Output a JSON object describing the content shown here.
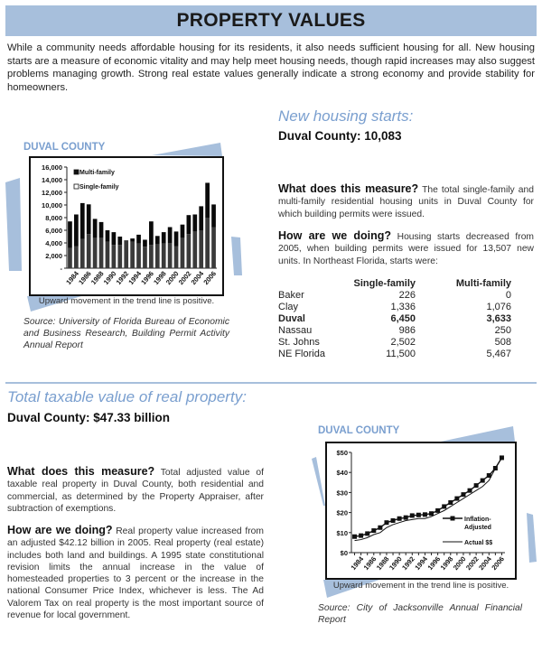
{
  "header": {
    "title": "PROPERTY VALUES"
  },
  "intro": "While a community needs affordable housing for its residents, it also needs sufficient housing for all. New housing starts are a measure of economic vitality and may help meet housing needs, though rapid increases may also suggest problems managing growth. Strong real estate values generally indicate a strong economy and provide stability for homeowners.",
  "colors": {
    "accent": "#a7bfdc",
    "title_blue": "#7a9fcf"
  },
  "housing": {
    "title": "New housing starts:",
    "headline": "Duval County:  10,083",
    "measure_q": "What does this measure?",
    "measure_a": " The total single-family and multi-family residential housing units in Duval County for which building permits were issued.",
    "doing_q": "How are we doing?",
    "doing_a": " Housing starts decreased from 2005, when building permits were issued for 13,507 new units.  In Northeast Florida, starts were:",
    "table": {
      "headers": [
        "",
        "Single-family",
        "Multi-family"
      ],
      "rows": [
        {
          "name": "Baker",
          "single": "226",
          "multi": "0",
          "bold": false
        },
        {
          "name": "Clay",
          "single": "1,336",
          "multi": "1,076",
          "bold": false
        },
        {
          "name": "Duval",
          "single": "6,450",
          "multi": "3,633",
          "bold": true
        },
        {
          "name": "Nassau",
          "single": "986",
          "multi": "250",
          "bold": false
        },
        {
          "name": "St. Johns",
          "single": "2,502",
          "multi": "508",
          "bold": false
        },
        {
          "name": "NE Florida",
          "single": "11,500",
          "multi": "5,467",
          "bold": false
        }
      ]
    },
    "chart_label": "DUVAL COUNTY",
    "caption": "Upward movement in the trend line is positive.",
    "source": "Source: University of Florida Bureau of Economic and Business Research, Building Permit Activity Annual Report"
  },
  "property": {
    "title": "Total taxable value of real property:",
    "headline": "Duval County:  $47.33 billion",
    "measure_q": "What does this measure?",
    "measure_a": " Total adjusted value of taxable real property in Duval County, both residential and commercial, as determined by the Property Appraiser, after subtraction of exemptions.",
    "doing_q": "How are we doing?",
    "doing_a": " Real property value increased from an adjusted $42.12 billion in 2005. Real property (real estate) includes both land and buildings. A 1995 state constitutional revision limits the annual increase in the value of homesteaded properties to 3 percent or the increase in the national Consumer Price Index, whichever is less. The Ad Valorem Tax on real property is the most important source of revenue for local government.",
    "chart_label": "DUVAL COUNTY",
    "caption": "Upward movement in the trend line is positive.",
    "source": "Source:  City of Jacksonville Annual Financial Report"
  },
  "chart_data": [
    {
      "type": "bar",
      "stacked": true,
      "title": "",
      "xlabel": "",
      "ylabel": "",
      "ylim": [
        0,
        16000
      ],
      "yticks": [
        "-",
        "2,000",
        "4,000",
        "6,000",
        "8,000",
        "10,000",
        "12,000",
        "14,000",
        "16,000"
      ],
      "xticks": [
        "1984",
        "1986",
        "1988",
        "1990",
        "1992",
        "1994",
        "1996",
        "1998",
        "2000",
        "2002",
        "2004",
        "2006"
      ],
      "categories": [
        "1983",
        "1984",
        "1985",
        "1986",
        "1987",
        "1988",
        "1989",
        "1990",
        "1991",
        "1992",
        "1993",
        "1994",
        "1995",
        "1996",
        "1997",
        "1998",
        "1999",
        "2000",
        "2001",
        "2002",
        "2003",
        "2004",
        "2005",
        "2006"
      ],
      "legend": [
        "Multi-family",
        "Single-family"
      ],
      "legend_position": "top-left",
      "series": [
        {
          "name": "Single-family",
          "color": "#3a3a3a",
          "values": [
            3200,
            3500,
            4600,
            5400,
            4800,
            4800,
            4200,
            3700,
            3700,
            4300,
            4200,
            3900,
            3400,
            3700,
            3800,
            3900,
            4000,
            3500,
            4800,
            5400,
            5800,
            6000,
            8000,
            6450
          ]
        },
        {
          "name": "Multi-family",
          "color": "#0a0a0a",
          "values": [
            4200,
            5000,
            5700,
            4700,
            3000,
            2500,
            1800,
            2000,
            1300,
            100,
            500,
            1400,
            1100,
            3700,
            1300,
            1800,
            2500,
            2300,
            2100,
            3000,
            2700,
            3800,
            5507,
            3633
          ]
        }
      ]
    },
    {
      "type": "line",
      "title": "",
      "xlabel": "",
      "ylabel": "",
      "ylim": [
        0,
        50
      ],
      "yticks": [
        "$0",
        "$10",
        "$20",
        "$30",
        "$40",
        "$50"
      ],
      "xticks": [
        "1984",
        "1986",
        "1988",
        "1990",
        "1992",
        "1994",
        "1996",
        "1998",
        "2000",
        "2002",
        "2004",
        "2006"
      ],
      "x": [
        "1983",
        "1984",
        "1985",
        "1986",
        "1987",
        "1988",
        "1989",
        "1990",
        "1991",
        "1992",
        "1993",
        "1994",
        "1995",
        "1996",
        "1997",
        "1998",
        "1999",
        "2000",
        "2001",
        "2002",
        "2003",
        "2004",
        "2005",
        "2006"
      ],
      "legend_position": "right",
      "series": [
        {
          "name": "Inflation-Adjusted",
          "marker": "square",
          "values": [
            8,
            8.5,
            9.5,
            11,
            12.5,
            15,
            16,
            17,
            17.5,
            18.5,
            18.8,
            19,
            19.5,
            21,
            23,
            25,
            27,
            29,
            31,
            33.5,
            36,
            38.5,
            42.12,
            47.33
          ]
        },
        {
          "name": "Actual $$",
          "marker": "none",
          "values": [
            6,
            6.5,
            7.5,
            9,
            10,
            12.5,
            14,
            15,
            16,
            16.5,
            17,
            17,
            18,
            19.5,
            21,
            23,
            25,
            27,
            29,
            31,
            33,
            36,
            42,
            47.33
          ]
        }
      ]
    }
  ]
}
